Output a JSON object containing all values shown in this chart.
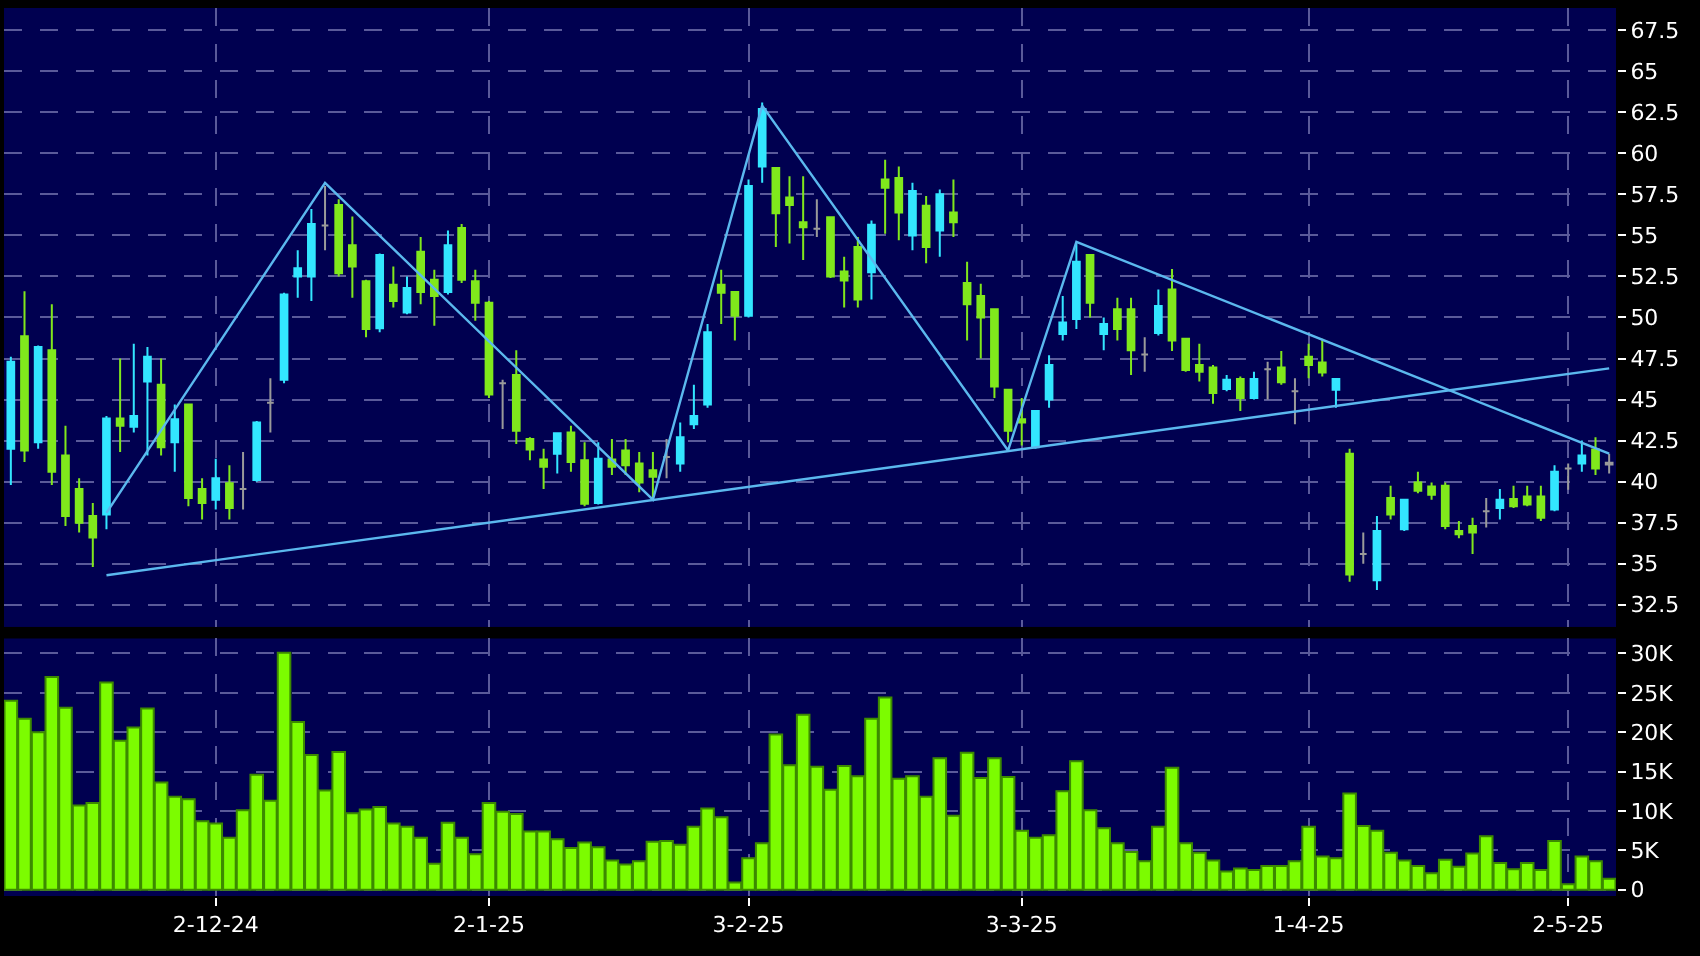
{
  "chart_data": [
    {
      "type": "candlestick",
      "categories": [
        null,
        null,
        null,
        null,
        null,
        null,
        null,
        null,
        null,
        null,
        null,
        null,
        null,
        null,
        null,
        null,
        null,
        null,
        null,
        null,
        null,
        null,
        null,
        null,
        null,
        null,
        null,
        null,
        null,
        null,
        null,
        null,
        null,
        null,
        null,
        null,
        null,
        null,
        null,
        null,
        null,
        null,
        null,
        null,
        null,
        null,
        null,
        null,
        null,
        null,
        null,
        null,
        null,
        null,
        null,
        null,
        null,
        null,
        null,
        null,
        null,
        null,
        null,
        null,
        null,
        null,
        null,
        null,
        null,
        null,
        null,
        null,
        null,
        null,
        null,
        null,
        null,
        null,
        null,
        null,
        null,
        null,
        null,
        null,
        null,
        null,
        null,
        null,
        null,
        null,
        null,
        null,
        null,
        null,
        null,
        null,
        null,
        null,
        null,
        null,
        null,
        null,
        null,
        null,
        null,
        null,
        null,
        null,
        null,
        null,
        null,
        null,
        null,
        null,
        null,
        null,
        null,
        null
      ],
      "ohlc": [
        [
          42.0,
          47.6,
          39.8,
          47.3
        ],
        [
          48.85,
          51.6,
          41.2,
          41.9
        ],
        [
          42.4,
          48.3,
          42.0,
          48.2
        ],
        [
          48.0,
          50.8,
          39.8,
          40.6
        ],
        [
          41.6,
          43.4,
          37.3,
          37.9
        ],
        [
          39.55,
          40.2,
          36.9,
          37.5
        ],
        [
          37.9,
          38.7,
          34.8,
          36.6
        ],
        [
          38.0,
          44.0,
          37.1,
          43.85
        ],
        [
          43.85,
          47.5,
          41.8,
          43.4
        ],
        [
          43.35,
          48.4,
          43.0,
          44.0
        ],
        [
          46.1,
          48.2,
          41.6,
          47.6
        ],
        [
          45.9,
          47.5,
          41.6,
          42.1
        ],
        [
          42.4,
          44.7,
          40.6,
          43.8
        ],
        [
          44.7,
          44.7,
          38.5,
          39.0
        ],
        [
          39.55,
          40.2,
          37.7,
          38.7
        ],
        [
          38.9,
          41.4,
          38.3,
          40.2
        ],
        [
          39.9,
          41.0,
          37.7,
          38.4
        ],
        [
          39.55,
          41.8,
          38.3,
          39.55
        ],
        [
          40.1,
          43.7,
          40.0,
          43.6
        ],
        [
          44.8,
          46.3,
          43.0,
          44.8
        ],
        [
          46.2,
          51.5,
          46.0,
          51.4
        ],
        [
          52.5,
          54.1,
          51.2,
          53.0
        ],
        [
          52.5,
          56.6,
          51.0,
          55.7
        ],
        [
          55.6,
          58.0,
          54.1,
          55.6
        ],
        [
          56.85,
          57.2,
          52.5,
          52.7
        ],
        [
          54.4,
          56.15,
          51.2,
          53.1
        ],
        [
          52.2,
          52.3,
          48.8,
          49.3
        ],
        [
          49.35,
          53.9,
          49.1,
          53.8
        ],
        [
          52.0,
          53.1,
          50.6,
          51.0
        ],
        [
          50.3,
          52.5,
          50.2,
          51.8
        ],
        [
          54.0,
          54.9,
          50.8,
          51.55
        ],
        [
          52.3,
          52.9,
          49.5,
          51.3
        ],
        [
          51.55,
          55.3,
          51.4,
          54.4
        ],
        [
          55.45,
          55.7,
          52.1,
          52.3
        ],
        [
          52.2,
          52.9,
          49.8,
          50.9
        ],
        [
          50.9,
          51.0,
          45.1,
          45.3
        ],
        [
          46.0,
          46.2,
          43.2,
          46.0
        ],
        [
          46.5,
          48.0,
          42.3,
          43.1
        ],
        [
          42.6,
          42.7,
          41.3,
          41.95
        ],
        [
          41.35,
          42.0,
          39.55,
          40.9
        ],
        [
          41.7,
          43.0,
          40.5,
          42.95
        ],
        [
          43.0,
          43.4,
          40.6,
          41.2
        ],
        [
          41.3,
          42.4,
          38.5,
          38.65
        ],
        [
          38.7,
          42.4,
          38.6,
          41.4
        ],
        [
          41.35,
          42.6,
          40.4,
          40.9
        ],
        [
          41.9,
          42.6,
          40.4,
          41.0
        ],
        [
          41.1,
          41.8,
          39.35,
          39.95
        ],
        [
          40.7,
          41.8,
          38.9,
          40.3
        ],
        [
          41.5,
          42.6,
          40.2,
          41.5
        ],
        [
          41.1,
          43.6,
          40.6,
          42.7
        ],
        [
          43.5,
          45.9,
          43.2,
          44.0
        ],
        [
          44.7,
          49.6,
          44.5,
          49.1
        ],
        [
          52.0,
          52.9,
          49.6,
          51.5
        ],
        [
          51.55,
          51.6,
          48.6,
          50.1
        ],
        [
          50.1,
          58.4,
          50.0,
          58.0
        ],
        [
          59.2,
          63.1,
          58.2,
          62.7
        ],
        [
          59.1,
          59.1,
          54.3,
          56.35
        ],
        [
          57.3,
          58.6,
          54.5,
          56.85
        ],
        [
          55.8,
          58.6,
          53.5,
          55.5
        ],
        [
          55.4,
          57.2,
          54.9,
          55.4
        ],
        [
          56.1,
          56.15,
          52.4,
          52.5
        ],
        [
          52.8,
          53.7,
          50.6,
          52.25
        ],
        [
          54.3,
          54.9,
          50.6,
          51.1
        ],
        [
          52.75,
          55.9,
          51.1,
          55.65
        ],
        [
          58.4,
          59.6,
          55.1,
          57.9
        ],
        [
          58.5,
          59.2,
          54.7,
          56.4
        ],
        [
          55.0,
          58.2,
          54.1,
          57.7
        ],
        [
          56.8,
          57.4,
          53.3,
          54.3
        ],
        [
          55.3,
          57.8,
          53.7,
          57.5
        ],
        [
          56.4,
          58.4,
          54.9,
          55.8
        ],
        [
          52.1,
          53.4,
          48.6,
          50.8
        ],
        [
          51.3,
          52.05,
          47.5,
          50.0
        ],
        [
          50.5,
          50.5,
          45.1,
          45.8
        ],
        [
          45.6,
          45.6,
          42.4,
          43.1
        ],
        [
          43.8,
          45.1,
          42.2,
          43.6
        ],
        [
          42.1,
          44.3,
          42.0,
          44.3
        ],
        [
          45.0,
          47.7,
          44.5,
          47.1
        ],
        [
          49.0,
          51.3,
          48.6,
          49.7
        ],
        [
          49.9,
          54.6,
          49.3,
          53.4
        ],
        [
          53.8,
          53.8,
          50.0,
          50.9
        ],
        [
          49.0,
          50.0,
          48.0,
          49.6
        ],
        [
          50.5,
          51.2,
          48.6,
          49.3
        ],
        [
          50.5,
          51.2,
          46.5,
          48.0
        ],
        [
          47.75,
          48.8,
          46.7,
          47.75
        ],
        [
          49.05,
          51.7,
          48.9,
          50.7
        ],
        [
          51.7,
          52.95,
          47.95,
          48.6
        ],
        [
          48.7,
          48.7,
          46.7,
          46.8
        ],
        [
          47.1,
          48.4,
          46.1,
          46.7
        ],
        [
          46.95,
          47.1,
          44.75,
          45.4
        ],
        [
          45.65,
          46.5,
          45.5,
          46.2
        ],
        [
          46.25,
          46.4,
          44.3,
          45.1
        ],
        [
          45.1,
          46.7,
          45.0,
          46.25
        ],
        [
          46.85,
          47.3,
          45.0,
          46.85
        ],
        [
          46.95,
          47.95,
          45.9,
          46.05
        ],
        [
          45.5,
          46.3,
          43.5,
          45.5
        ],
        [
          47.6,
          48.4,
          46.3,
          47.1
        ],
        [
          47.25,
          48.7,
          46.4,
          46.65
        ],
        [
          45.6,
          46.3,
          44.5,
          46.25
        ],
        [
          41.7,
          42.0,
          33.9,
          34.35
        ],
        [
          35.6,
          36.9,
          35.0,
          35.6
        ],
        [
          34.0,
          37.9,
          33.4,
          37.0
        ],
        [
          39.0,
          39.75,
          37.7,
          38.0
        ],
        [
          37.1,
          38.95,
          37.0,
          38.9
        ],
        [
          39.95,
          40.6,
          39.3,
          39.45
        ],
        [
          39.7,
          39.95,
          38.9,
          39.2
        ],
        [
          39.75,
          39.95,
          37.1,
          37.3
        ],
        [
          37.0,
          37.6,
          36.55,
          36.8
        ],
        [
          37.3,
          37.8,
          35.6,
          36.9
        ],
        [
          38.2,
          39.0,
          37.2,
          38.2
        ],
        [
          38.4,
          39.55,
          37.7,
          38.9
        ],
        [
          38.95,
          39.75,
          38.4,
          38.5
        ],
        [
          39.1,
          39.75,
          38.5,
          38.6
        ],
        [
          39.1,
          39.75,
          37.6,
          37.8
        ],
        [
          38.3,
          41.0,
          38.2,
          40.6
        ],
        [
          40.8,
          41.1,
          39.5,
          40.8
        ],
        [
          41.1,
          42.5,
          40.6,
          41.6
        ],
        [
          41.95,
          42.7,
          40.4,
          40.8
        ],
        [
          41.15,
          41.7,
          40.5,
          41.05
        ]
      ],
      "colors": [
        "#33e6ff",
        "#80e81c",
        "#33e6ff",
        "#80e81c",
        "#80e81c",
        "#80e81c",
        "#80e81c",
        "#33e6ff",
        "#80e81c",
        "#33e6ff",
        "#33e6ff",
        "#80e81c",
        "#33e6ff",
        "#80e81c",
        "#80e81c",
        "#33e6ff",
        "#80e81c",
        "#9a9a9a",
        "#33e6ff",
        "#9a9a9a",
        "#33e6ff",
        "#33e6ff",
        "#33e6ff",
        "#9a9a9a",
        "#80e81c",
        "#80e81c",
        "#80e81c",
        "#33e6ff",
        "#80e81c",
        "#33e6ff",
        "#80e81c",
        "#80e81c",
        "#33e6ff",
        "#80e81c",
        "#80e81c",
        "#80e81c",
        "#9a9a9a",
        "#80e81c",
        "#80e81c",
        "#80e81c",
        "#33e6ff",
        "#80e81c",
        "#80e81c",
        "#33e6ff",
        "#80e81c",
        "#80e81c",
        "#80e81c",
        "#80e81c",
        "#9a9a9a",
        "#33e6ff",
        "#33e6ff",
        "#33e6ff",
        "#80e81c",
        "#80e81c",
        "#33e6ff",
        "#33e6ff",
        "#80e81c",
        "#80e81c",
        "#80e81c",
        "#9a9a9a",
        "#80e81c",
        "#80e81c",
        "#80e81c",
        "#33e6ff",
        "#80e81c",
        "#80e81c",
        "#33e6ff",
        "#80e81c",
        "#33e6ff",
        "#80e81c",
        "#80e81c",
        "#80e81c",
        "#80e81c",
        "#80e81c",
        "#80e81c",
        "#33e6ff",
        "#33e6ff",
        "#33e6ff",
        "#33e6ff",
        "#80e81c",
        "#33e6ff",
        "#80e81c",
        "#80e81c",
        "#9a9a9a",
        "#33e6ff",
        "#80e81c",
        "#80e81c",
        "#80e81c",
        "#80e81c",
        "#33e6ff",
        "#80e81c",
        "#33e6ff",
        "#9a9a9a",
        "#80e81c",
        "#9a9a9a",
        "#80e81c",
        "#80e81c",
        "#33e6ff",
        "#80e81c",
        "#9a9a9a",
        "#33e6ff",
        "#80e81c",
        "#33e6ff",
        "#80e81c",
        "#80e81c",
        "#80e81c",
        "#80e81c",
        "#80e81c",
        "#9a9a9a",
        "#33e6ff",
        "#80e81c",
        "#80e81c",
        "#80e81c",
        "#33e6ff",
        "#9a9a9a",
        "#33e6ff",
        "#80e81c",
        "#9a9a9a"
      ],
      "series": [
        {
          "type": "line",
          "color": "#5bb8ee",
          "values": [
            null,
            null,
            null,
            null,
            null,
            null,
            null,
            38.1,
            null,
            null,
            null,
            null,
            null,
            null,
            null,
            null,
            null,
            null,
            null,
            null,
            null,
            null,
            null,
            58.2,
            null,
            null,
            null,
            null,
            null,
            null,
            null,
            null,
            null,
            null,
            null,
            null,
            null,
            null,
            null,
            null,
            null,
            null,
            null,
            null,
            null,
            null,
            null,
            38.9,
            null,
            null,
            null,
            null,
            null,
            null,
            null,
            62.9,
            null,
            null,
            null,
            null,
            null,
            null,
            null,
            null,
            null,
            null,
            null,
            null,
            null,
            null,
            null,
            null,
            null,
            41.9,
            null,
            null,
            null,
            null,
            54.6,
            null,
            null,
            null,
            null,
            null,
            null,
            null,
            null,
            null,
            null,
            null,
            null,
            null,
            null,
            null,
            null,
            null,
            null,
            null,
            null,
            null,
            null,
            null,
            null,
            null,
            null,
            null,
            null,
            null,
            null,
            null,
            null,
            null,
            null,
            null,
            null,
            null,
            null,
            41.7
          ]
        },
        {
          "type": "line",
          "color": "#5bb8ee",
          "values": [
            null,
            null,
            null,
            null,
            null,
            null,
            null,
            34.3,
            null,
            null,
            null,
            null,
            null,
            null,
            null,
            null,
            null,
            null,
            null,
            null,
            null,
            null,
            null,
            null,
            null,
            null,
            null,
            null,
            null,
            null,
            null,
            null,
            null,
            null,
            null,
            null,
            null,
            null,
            null,
            null,
            null,
            null,
            null,
            null,
            null,
            null,
            null,
            null,
            null,
            null,
            null,
            null,
            null,
            null,
            null,
            null,
            null,
            null,
            null,
            null,
            null,
            null,
            null,
            null,
            null,
            null,
            null,
            null,
            null,
            null,
            null,
            null,
            null,
            null,
            null,
            null,
            null,
            null,
            null,
            null,
            null,
            null,
            null,
            null,
            null,
            null,
            null,
            null,
            null,
            null,
            null,
            null,
            null,
            null,
            null,
            null,
            null,
            null,
            null,
            null,
            null,
            null,
            null,
            null,
            null,
            null,
            null,
            null,
            null,
            null,
            null,
            null,
            null,
            null,
            null,
            null,
            null,
            46.9
          ]
        }
      ],
      "ylim": [
        31.15,
        68.85
      ],
      "yticks": [
        32.5,
        35,
        37.5,
        40,
        42.5,
        45,
        47.5,
        50,
        52.5,
        55,
        57.5,
        60,
        62.5,
        65,
        67.5
      ],
      "grid": true,
      "tick_labels": "y"
    },
    {
      "type": "bar",
      "categories": [
        null,
        null,
        null,
        null,
        null,
        null,
        null,
        null,
        null,
        null,
        null,
        null,
        null,
        null,
        null,
        "2-12-24",
        null,
        null,
        null,
        null,
        null,
        null,
        null,
        null,
        null,
        null,
        null,
        null,
        null,
        null,
        null,
        null,
        null,
        null,
        null,
        "2-1-25",
        null,
        null,
        null,
        null,
        null,
        null,
        null,
        null,
        null,
        null,
        null,
        null,
        null,
        null,
        null,
        null,
        null,
        null,
        "3-2-25",
        null,
        null,
        null,
        null,
        null,
        null,
        null,
        null,
        null,
        null,
        null,
        null,
        null,
        null,
        null,
        null,
        null,
        null,
        null,
        "3-3-25",
        null,
        null,
        null,
        null,
        null,
        null,
        null,
        null,
        null,
        null,
        null,
        null,
        null,
        null,
        null,
        null,
        null,
        null,
        null,
        null,
        "1-4-25",
        null,
        null,
        null,
        null,
        null,
        null,
        null,
        null,
        null,
        null,
        null,
        null,
        null,
        null,
        null,
        null,
        null,
        null,
        "2-5-25",
        null,
        null,
        null
      ],
      "color": "#7cfc00",
      "values": [
        24000,
        21700,
        20000,
        27000,
        23100,
        10700,
        11000,
        26300,
        18900,
        20600,
        23000,
        13600,
        11800,
        11500,
        8700,
        8400,
        6600,
        10100,
        14600,
        11300,
        30100,
        21300,
        17100,
        12600,
        17500,
        9700,
        10200,
        10500,
        8400,
        8000,
        6600,
        3300,
        8500,
        6600,
        4500,
        11000,
        9900,
        9600,
        7400,
        7400,
        6400,
        5300,
        6000,
        5400,
        3700,
        3200,
        3600,
        6100,
        6200,
        5700,
        8000,
        10300,
        9200,
        900,
        4000,
        5900,
        19700,
        15800,
        22200,
        15600,
        12700,
        15700,
        14400,
        21700,
        24400,
        14100,
        14400,
        11800,
        16700,
        9400,
        17400,
        14200,
        16700,
        14300,
        7500,
        6600,
        6900,
        12500,
        16300,
        10100,
        7800,
        5900,
        4800,
        3600,
        8000,
        15500,
        5900,
        4700,
        3700,
        2300,
        2700,
        2500,
        3000,
        3000,
        3600,
        8000,
        4200,
        4000,
        12200,
        8100,
        7500,
        4700,
        3700,
        3000,
        2100,
        3800,
        2900,
        4600,
        6800,
        3400,
        2600,
        3400,
        2500,
        6200,
        700,
        4200,
        3600,
        1400
      ],
      "ylim": [
        -800,
        31900
      ],
      "yticks": [
        0,
        {
          "value": 5000,
          "label": "5K"
        },
        {
          "value": 10000,
          "label": "10K"
        },
        {
          "value": 15000,
          "label": "15K"
        },
        {
          "value": 20000,
          "label": "20K"
        },
        {
          "value": 25000,
          "label": "25K"
        },
        {
          "value": 30000,
          "label": "30K"
        }
      ],
      "grid": true
    }
  ]
}
